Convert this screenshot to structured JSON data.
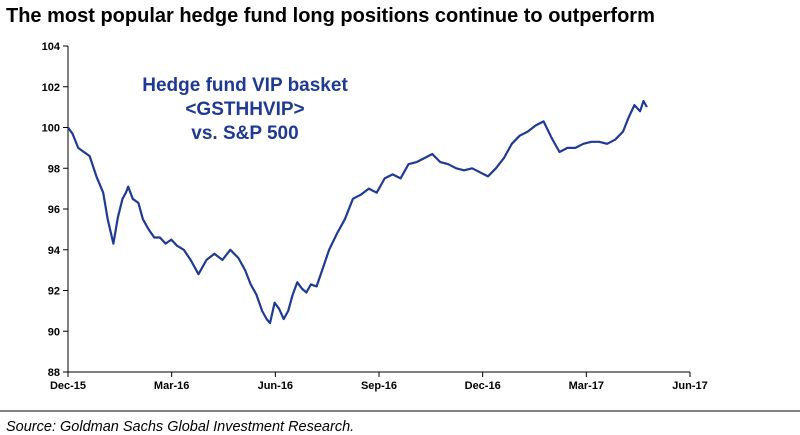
{
  "title": "The most popular hedge fund long positions continue to outperform",
  "source": "Source: Goldman Sachs Global Investment Research.",
  "chart_data": {
    "type": "line",
    "title": "The most popular hedge fund long positions continue to outperform",
    "annotation": [
      "Hedge fund VIP basket",
      "<GSTHHVIP>",
      "vs. S&P 500"
    ],
    "xlabel": "",
    "ylabel": "",
    "ylim": [
      88,
      104
    ],
    "yticks": [
      88,
      90,
      92,
      94,
      96,
      98,
      100,
      102,
      104
    ],
    "xticks": [
      "Dec-15",
      "Mar-16",
      "Jun-16",
      "Sep-16",
      "Dec-16",
      "Mar-17",
      "Jun-17"
    ],
    "xlim": [
      "2015-12-01",
      "2017-06-01"
    ],
    "grid": false,
    "line_color": "#1f3a93",
    "series": [
      {
        "x": [
          "2015-12-01",
          "2015-12-05",
          "2015-12-10",
          "2015-12-15",
          "2015-12-20",
          "2015-12-26",
          "2016-01-01",
          "2016-01-05",
          "2016-01-10",
          "2016-01-14",
          "2016-01-18",
          "2016-01-21",
          "2016-01-23",
          "2016-01-27",
          "2016-02-01",
          "2016-02-05",
          "2016-02-10",
          "2016-02-15",
          "2016-02-20",
          "2016-02-25",
          "2016-03-01",
          "2016-03-06",
          "2016-03-12",
          "2016-03-18",
          "2016-03-25",
          "2016-04-01",
          "2016-04-08",
          "2016-04-15",
          "2016-04-22",
          "2016-04-29",
          "2016-05-05",
          "2016-05-10",
          "2016-05-15",
          "2016-05-20",
          "2016-05-24",
          "2016-05-27",
          "2016-05-31",
          "2016-06-04",
          "2016-06-08",
          "2016-06-12",
          "2016-06-16",
          "2016-06-20",
          "2016-06-24",
          "2016-06-28",
          "2016-07-02",
          "2016-07-07",
          "2016-07-12",
          "2016-07-18",
          "2016-07-25",
          "2016-08-01",
          "2016-08-08",
          "2016-08-15",
          "2016-08-22",
          "2016-08-29",
          "2016-09-05",
          "2016-09-12",
          "2016-09-19",
          "2016-09-26",
          "2016-10-03",
          "2016-10-10",
          "2016-10-17",
          "2016-10-24",
          "2016-10-31",
          "2016-11-07",
          "2016-11-14",
          "2016-11-21",
          "2016-11-28",
          "2016-12-05",
          "2016-12-12",
          "2016-12-19",
          "2016-12-26",
          "2017-01-02",
          "2017-01-09",
          "2017-01-16",
          "2017-01-23",
          "2017-01-30",
          "2017-02-06",
          "2017-02-13",
          "2017-02-20",
          "2017-02-27",
          "2017-03-06",
          "2017-03-13",
          "2017-03-20",
          "2017-03-27",
          "2017-04-03",
          "2017-04-08",
          "2017-04-13",
          "2017-04-18",
          "2017-04-21",
          "2017-04-24"
        ],
        "values": [
          100.0,
          99.7,
          99.0,
          98.8,
          98.6,
          97.6,
          96.8,
          95.5,
          94.3,
          95.6,
          96.5,
          96.8,
          97.1,
          96.5,
          96.3,
          95.5,
          95.0,
          94.6,
          94.6,
          94.3,
          94.5,
          94.2,
          94.0,
          93.5,
          92.8,
          93.5,
          93.8,
          93.5,
          94.0,
          93.6,
          93.0,
          92.3,
          91.8,
          91.0,
          90.6,
          90.4,
          91.4,
          91.1,
          90.6,
          91.0,
          91.8,
          92.4,
          92.1,
          91.9,
          92.3,
          92.2,
          93.0,
          94.0,
          94.8,
          95.5,
          96.5,
          96.7,
          97.0,
          96.8,
          97.5,
          97.7,
          97.5,
          98.2,
          98.3,
          98.5,
          98.7,
          98.3,
          98.2,
          98.0,
          97.9,
          98.0,
          97.8,
          97.6,
          98.0,
          98.5,
          99.2,
          99.6,
          99.8,
          100.1,
          100.3,
          99.5,
          98.8,
          99.0,
          99.0,
          99.2,
          99.3,
          99.3,
          99.2,
          99.4,
          99.8,
          100.5,
          101.1,
          100.8,
          101.3,
          101.0
        ]
      }
    ]
  }
}
